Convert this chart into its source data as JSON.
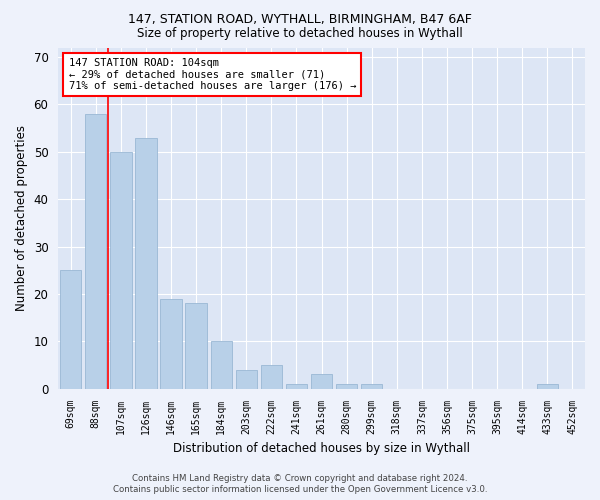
{
  "title1": "147, STATION ROAD, WYTHALL, BIRMINGHAM, B47 6AF",
  "title2": "Size of property relative to detached houses in Wythall",
  "xlabel": "Distribution of detached houses by size in Wythall",
  "ylabel": "Number of detached properties",
  "categories": [
    "69sqm",
    "88sqm",
    "107sqm",
    "126sqm",
    "146sqm",
    "165sqm",
    "184sqm",
    "203sqm",
    "222sqm",
    "241sqm",
    "261sqm",
    "280sqm",
    "299sqm",
    "318sqm",
    "337sqm",
    "356sqm",
    "375sqm",
    "395sqm",
    "414sqm",
    "433sqm",
    "452sqm"
  ],
  "values": [
    25,
    58,
    50,
    53,
    19,
    18,
    10,
    4,
    5,
    1,
    3,
    1,
    1,
    0,
    0,
    0,
    0,
    0,
    0,
    1,
    0
  ],
  "bar_color": "#b8d0e8",
  "bar_edge_color": "#9ab8d4",
  "red_line_x": 1.5,
  "ylim": [
    0,
    72
  ],
  "yticks": [
    0,
    10,
    20,
    30,
    40,
    50,
    60,
    70
  ],
  "annotation_lines": [
    "147 STATION ROAD: 104sqm",
    "← 29% of detached houses are smaller (71)",
    "71% of semi-detached houses are larger (176) →"
  ],
  "footer1": "Contains HM Land Registry data © Crown copyright and database right 2024.",
  "footer2": "Contains public sector information licensed under the Open Government Licence v3.0.",
  "bg_color": "#eef2fb",
  "plot_bg_color": "#dde6f5"
}
